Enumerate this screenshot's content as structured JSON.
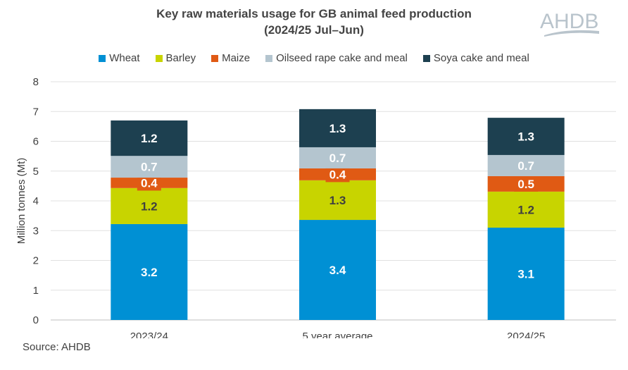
{
  "chart_data": {
    "type": "bar",
    "stacked": true,
    "title_line1": "Key raw materials usage for GB animal feed production",
    "title_line2": "(2024/25 Jul–Jun)",
    "ylabel": "Million tonnes (Mt)",
    "xlabel": "",
    "ylim": [
      0,
      8
    ],
    "yticks": [
      "0",
      "1",
      "2",
      "3",
      "4",
      "5",
      "6",
      "7",
      "8"
    ],
    "grid": true,
    "legend_position": "top",
    "categories": [
      "2023/24",
      "5 year average",
      "2024/25"
    ],
    "series": [
      {
        "name": "Wheat",
        "color": "#0090d4",
        "label_color": "#ffffff",
        "values": [
          3.22,
          3.36,
          3.1
        ],
        "labels": [
          "3.2",
          "3.4",
          "3.1"
        ]
      },
      {
        "name": "Barley",
        "color": "#c8d400",
        "label_color": "#404040",
        "values": [
          1.21,
          1.33,
          1.21
        ],
        "labels": [
          "1.2",
          "1.3",
          "1.2"
        ]
      },
      {
        "name": "Maize",
        "color": "#e05a14",
        "label_color": "#ffffff",
        "values": [
          0.35,
          0.4,
          0.52
        ],
        "labels": [
          "0.4",
          "0.4",
          "0.5"
        ]
      },
      {
        "name": "Oilseed rape cake and meal",
        "color": "#b4c5cf",
        "label_color": "#ffffff",
        "values": [
          0.73,
          0.71,
          0.71
        ],
        "labels": [
          "0.7",
          "0.7",
          "0.7"
        ]
      },
      {
        "name": "Soya cake and meal",
        "color": "#1d4050",
        "label_color": "#ffffff",
        "values": [
          1.19,
          1.28,
          1.25
        ],
        "labels": [
          "1.2",
          "1.3",
          "1.3"
        ]
      }
    ]
  },
  "source": "Source: AHDB",
  "logo_text": "AHDB"
}
